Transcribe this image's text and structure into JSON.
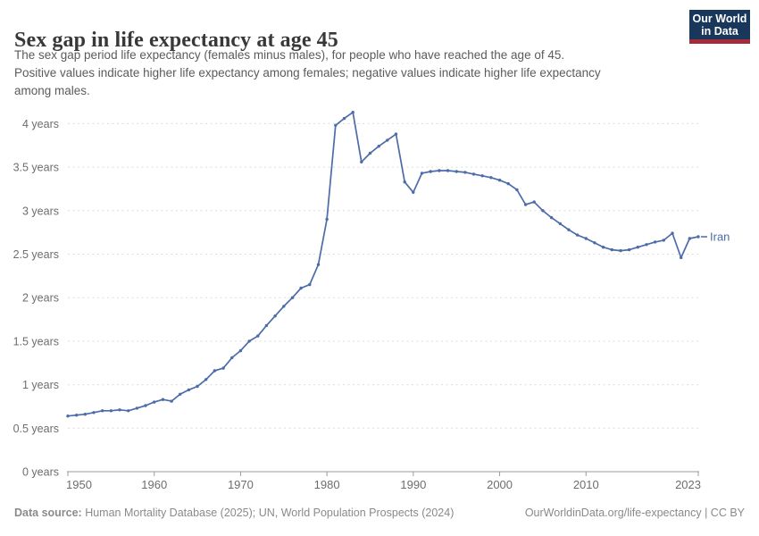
{
  "header": {
    "title": "Sex gap in life expectancy at age 45",
    "subtitle_lines": [
      "The sex gap period life expectancy (females minus males), for people who have reached the age of 45.",
      "Positive values indicate higher life expectancy among females; negative values indicate higher life expectancy",
      "among males."
    ]
  },
  "logo": {
    "line1": "Our World",
    "line2": "in Data",
    "bg_color": "#18375a",
    "accent_color": "#a52a3a"
  },
  "chart_data": {
    "type": "line",
    "title": "Sex gap in life expectancy at age 45",
    "xlabel": "",
    "ylabel": "",
    "unit_suffix": " years",
    "ylim": [
      0,
      4
    ],
    "ytick_step": 0.5,
    "grid": "horizontal-dashed",
    "legend_position": "end-of-line-label",
    "x": [
      1950,
      1951,
      1952,
      1953,
      1954,
      1955,
      1956,
      1957,
      1958,
      1959,
      1960,
      1961,
      1962,
      1963,
      1964,
      1965,
      1966,
      1967,
      1968,
      1969,
      1970,
      1971,
      1972,
      1973,
      1974,
      1975,
      1976,
      1977,
      1978,
      1979,
      1980,
      1981,
      1982,
      1983,
      1984,
      1985,
      1986,
      1987,
      1988,
      1989,
      1990,
      1991,
      1992,
      1993,
      1994,
      1995,
      1996,
      1997,
      1998,
      1999,
      2000,
      2001,
      2002,
      2003,
      2004,
      2005,
      2006,
      2007,
      2008,
      2009,
      2010,
      2011,
      2012,
      2013,
      2014,
      2015,
      2016,
      2017,
      2018,
      2019,
      2020,
      2021,
      2022,
      2023
    ],
    "series": [
      {
        "name": "Iran",
        "color": "#4c6ba9",
        "values": [
          0.64,
          0.65,
          0.66,
          0.68,
          0.7,
          0.7,
          0.71,
          0.7,
          0.73,
          0.76,
          0.8,
          0.83,
          0.81,
          0.89,
          0.94,
          0.98,
          1.06,
          1.16,
          1.19,
          1.31,
          1.39,
          1.5,
          1.56,
          1.68,
          1.79,
          1.9,
          2.0,
          2.11,
          2.15,
          2.38,
          2.9,
          3.98,
          4.06,
          4.13,
          3.56,
          3.66,
          3.74,
          3.81,
          3.88,
          3.33,
          3.21,
          3.43,
          3.45,
          3.46,
          3.46,
          3.45,
          3.44,
          3.42,
          3.4,
          3.38,
          3.35,
          3.31,
          3.24,
          3.07,
          3.1,
          3.0,
          2.92,
          2.85,
          2.78,
          2.72,
          2.68,
          2.63,
          2.58,
          2.55,
          2.54,
          2.55,
          2.58,
          2.61,
          2.64,
          2.66,
          2.74,
          2.46,
          2.68,
          2.7
        ]
      }
    ],
    "yticks": [
      {
        "value": 0,
        "label": "0 years"
      },
      {
        "value": 0.5,
        "label": "0.5 years"
      },
      {
        "value": 1,
        "label": "1 years"
      },
      {
        "value": 1.5,
        "label": "1.5 years"
      },
      {
        "value": 2,
        "label": "2 years"
      },
      {
        "value": 2.5,
        "label": "2.5 years"
      },
      {
        "value": 3,
        "label": "3 years"
      },
      {
        "value": 3.5,
        "label": "3.5 years"
      },
      {
        "value": 4,
        "label": "4 years"
      }
    ],
    "xticks": [
      1950,
      1960,
      1970,
      1980,
      1990,
      2000,
      2010,
      2023
    ]
  },
  "footer": {
    "datasource_label": "Data source:",
    "datasource_text": " Human Mortality Database (2025); UN, World Population Prospects (2024)",
    "license_text": "OurWorldinData.org/life-expectancy | CC BY"
  }
}
